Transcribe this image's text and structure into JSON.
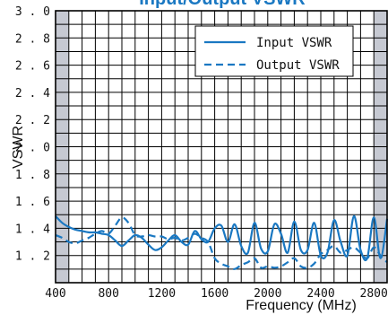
{
  "chart_data": {
    "type": "line",
    "title": "Input/Output VSWR",
    "xlabel": "Frequency (MHz)",
    "ylabel": "VSWR",
    "xlim": [
      400,
      2900
    ],
    "ylim": [
      1.0,
      3.0
    ],
    "x_ticks": [
      "400",
      "800",
      "1200",
      "1600",
      "2000",
      "2400",
      "2800"
    ],
    "y_ticks": [
      "1.2",
      "1.4",
      "1.6",
      "1.8",
      "2.0",
      "2.2",
      "2.4",
      "2.6",
      "2.8",
      "3.0"
    ],
    "grid": true,
    "legend_position": "top-right",
    "shaded_x_ranges": [
      [
        400,
        500
      ],
      [
        2800,
        2900
      ]
    ],
    "series": [
      {
        "name": "Input VSWR",
        "style": "solid",
        "x": [
          400,
          450,
          500,
          550,
          600,
          650,
          700,
          750,
          800,
          850,
          900,
          950,
          1000,
          1050,
          1100,
          1150,
          1200,
          1250,
          1300,
          1350,
          1400,
          1450,
          1500,
          1550,
          1600,
          1650,
          1700,
          1750,
          1800,
          1850,
          1900,
          1950,
          2000,
          2050,
          2100,
          2150,
          2200,
          2250,
          2300,
          2350,
          2400,
          2450,
          2500,
          2550,
          2600,
          2650,
          2700,
          2750,
          2800,
          2850,
          2900
        ],
        "y": [
          1.49,
          1.44,
          1.41,
          1.39,
          1.38,
          1.37,
          1.37,
          1.36,
          1.35,
          1.31,
          1.27,
          1.31,
          1.35,
          1.33,
          1.28,
          1.24,
          1.26,
          1.31,
          1.35,
          1.3,
          1.28,
          1.38,
          1.32,
          1.3,
          1.4,
          1.42,
          1.3,
          1.43,
          1.27,
          1.22,
          1.44,
          1.25,
          1.23,
          1.43,
          1.36,
          1.22,
          1.45,
          1.24,
          1.24,
          1.44,
          1.2,
          1.22,
          1.46,
          1.3,
          1.2,
          1.49,
          1.24,
          1.18,
          1.48,
          1.18,
          1.47
        ]
      },
      {
        "name": "Output VSWR",
        "style": "dashed",
        "x": [
          400,
          450,
          500,
          550,
          600,
          650,
          700,
          750,
          800,
          850,
          900,
          950,
          1000,
          1050,
          1100,
          1150,
          1200,
          1250,
          1300,
          1350,
          1400,
          1450,
          1500,
          1550,
          1600,
          1650,
          1700,
          1750,
          1800,
          1850,
          1900,
          1950,
          2000,
          2050,
          2100,
          2150,
          2200,
          2250,
          2300,
          2350,
          2400,
          2450,
          2500,
          2550,
          2600,
          2650,
          2700,
          2750,
          2800,
          2850,
          2900
        ],
        "y": [
          1.35,
          1.33,
          1.3,
          1.29,
          1.31,
          1.33,
          1.36,
          1.38,
          1.36,
          1.42,
          1.48,
          1.44,
          1.35,
          1.34,
          1.35,
          1.34,
          1.34,
          1.32,
          1.33,
          1.31,
          1.33,
          1.36,
          1.33,
          1.3,
          1.18,
          1.14,
          1.12,
          1.1,
          1.13,
          1.15,
          1.18,
          1.11,
          1.12,
          1.11,
          1.12,
          1.15,
          1.18,
          1.12,
          1.11,
          1.14,
          1.21,
          1.24,
          1.27,
          1.22,
          1.24,
          1.26,
          1.22,
          1.18,
          1.26,
          1.2,
          1.15
        ]
      }
    ]
  },
  "colors": {
    "line": "#1a78c2",
    "title": "#1a78c2",
    "shade": "#c6c9d2",
    "grid": "#000000"
  }
}
